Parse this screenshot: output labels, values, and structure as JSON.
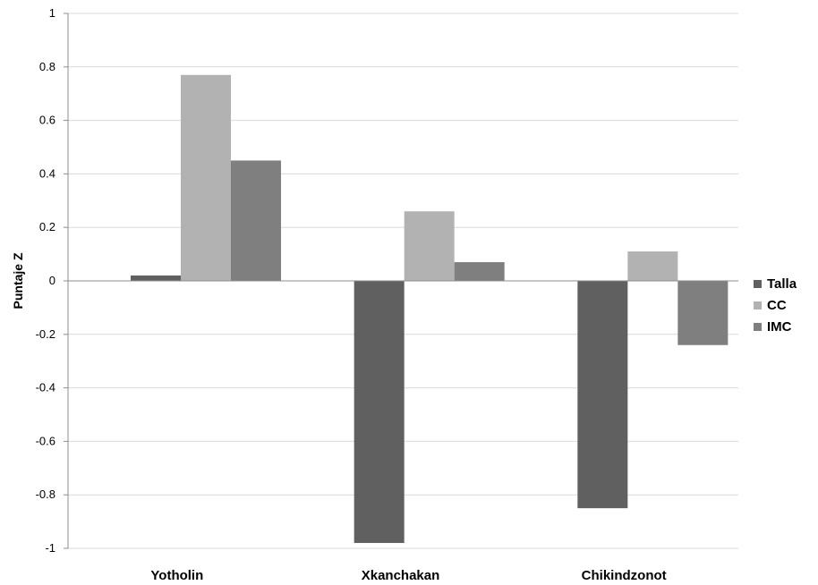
{
  "chart_data": {
    "type": "bar",
    "categories": [
      "Yotholin",
      "Xkanchakan",
      "Chikindzonot"
    ],
    "series": [
      {
        "name": "Talla",
        "color": "#606060",
        "values": [
          0.02,
          -0.98,
          -0.85
        ]
      },
      {
        "name": "CC",
        "color": "#b2b2b2",
        "values": [
          0.77,
          0.26,
          0.11
        ]
      },
      {
        "name": "IMC",
        "color": "#7f7f7f",
        "values": [
          0.45,
          0.07,
          -0.24
        ]
      }
    ],
    "ylabel": "Puntaje Z",
    "ylim": [
      -1,
      1
    ],
    "yticks": [
      "1",
      "0.8",
      "0.6",
      "0.4",
      "0.2",
      "0",
      "-0.2",
      "-0.4",
      "-0.6",
      "-0.8",
      "-1"
    ],
    "grid": true,
    "legend_position": "right"
  }
}
